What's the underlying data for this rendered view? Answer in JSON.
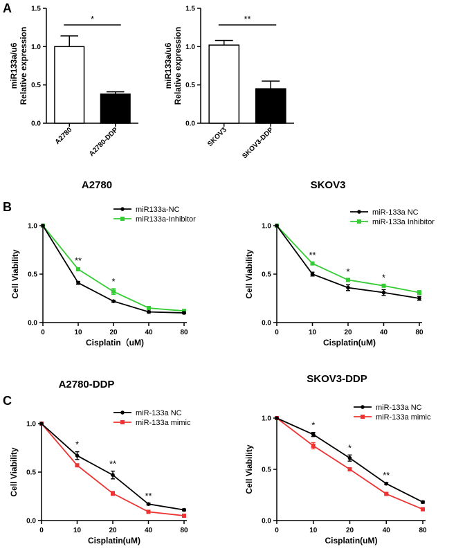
{
  "panel_labels": [
    "A",
    "B",
    "C"
  ],
  "chart_data": [
    {
      "id": "a1",
      "type": "bar",
      "panel": "A",
      "categories": [
        "A2780",
        "A2780-DDP"
      ],
      "values": [
        1.0,
        0.38
      ],
      "errors": [
        0.14,
        0.03
      ],
      "colors": [
        "#ffffff",
        "#000000"
      ],
      "ylabel": "miR133a/u6\nRelative expression",
      "ylim": [
        0,
        1.5
      ],
      "yticks": [
        "0.0",
        "0.5",
        "1.0",
        "1.5"
      ],
      "significance": [
        {
          "from": 0,
          "to": 1,
          "text": "*"
        }
      ]
    },
    {
      "id": "a2",
      "type": "bar",
      "panel": "A",
      "categories": [
        "SKOV3",
        "SKOV3-DDP"
      ],
      "values": [
        1.02,
        0.45
      ],
      "errors": [
        0.06,
        0.1
      ],
      "colors": [
        "#ffffff",
        "#000000"
      ],
      "ylabel": "miR133a/u6\nRelative expression",
      "ylim": [
        0,
        1.5
      ],
      "yticks": [
        "0.0",
        "0.5",
        "1.0",
        "1.5"
      ],
      "significance": [
        {
          "from": 0,
          "to": 1,
          "text": "**"
        }
      ]
    },
    {
      "id": "b1",
      "type": "line",
      "panel": "B",
      "title": "A2780",
      "xlabel": "Cisplatin（uM)",
      "ylabel": "Cell Viability",
      "categories": [
        "0",
        "10",
        "20",
        "40",
        "80"
      ],
      "ylim": [
        0,
        1.0
      ],
      "yticks": [
        "0.0",
        "0.5",
        "1.0"
      ],
      "legend_position": "top-right",
      "series": [
        {
          "name": "miR133a-NC",
          "color": "#000000",
          "marker": "circle",
          "values": [
            1.0,
            0.41,
            0.22,
            0.11,
            0.1
          ],
          "errors": [
            0,
            0.015,
            0.01,
            0.01,
            0.01
          ]
        },
        {
          "name": "miR133a-Inhibitor",
          "color": "#33cc33",
          "marker": "square",
          "values": [
            1.0,
            0.55,
            0.32,
            0.15,
            0.12
          ],
          "errors": [
            0,
            0.015,
            0.03,
            0.01,
            0.01
          ]
        }
      ],
      "annotations": [
        {
          "x": 1,
          "text": "**"
        },
        {
          "x": 2,
          "text": "*"
        }
      ]
    },
    {
      "id": "b2",
      "type": "line",
      "panel": "B",
      "title": "SKOV3",
      "xlabel": "Cisplatin(uM)",
      "ylabel": "Cell Viability",
      "categories": [
        "0",
        "10",
        "20",
        "40",
        "80"
      ],
      "ylim": [
        0,
        1.0
      ],
      "yticks": [
        "0.0",
        "0.5",
        "1.0"
      ],
      "legend_position": "top-right",
      "series": [
        {
          "name": "miR-133a NC",
          "color": "#000000",
          "marker": "circle",
          "values": [
            1.0,
            0.5,
            0.36,
            0.31,
            0.25
          ],
          "errors": [
            0,
            0.02,
            0.03,
            0.03,
            0.02
          ]
        },
        {
          "name": "miR-133a Inhibitor",
          "color": "#33cc33",
          "marker": "square",
          "values": [
            1.0,
            0.61,
            0.44,
            0.38,
            0.31
          ],
          "errors": [
            0,
            0.01,
            0.01,
            0.01,
            0.02
          ]
        }
      ],
      "annotations": [
        {
          "x": 1,
          "text": "**"
        },
        {
          "x": 2,
          "text": "*"
        },
        {
          "x": 3,
          "text": "*"
        }
      ]
    },
    {
      "id": "c1",
      "type": "line",
      "panel": "C",
      "title": "A2780-DDP",
      "xlabel": "Cisplatin(uM)",
      "ylabel": "Cell Viability",
      "categories": [
        "0",
        "10",
        "20",
        "40",
        "80"
      ],
      "ylim": [
        0,
        1.0
      ],
      "yticks": [
        "0.0",
        "0.5",
        "1.0"
      ],
      "legend_position": "top-right",
      "series": [
        {
          "name": "miR-133a NC",
          "color": "#000000",
          "marker": "circle",
          "values": [
            1.0,
            0.67,
            0.47,
            0.17,
            0.11
          ],
          "errors": [
            0,
            0.04,
            0.04,
            0.01,
            0.01
          ]
        },
        {
          "name": "miR-133a mimic",
          "color": "#ee3333",
          "marker": "square",
          "values": [
            1.0,
            0.57,
            0.28,
            0.09,
            0.05
          ],
          "errors": [
            0,
            0.015,
            0.02,
            0.01,
            0.01
          ]
        }
      ],
      "annotations": [
        {
          "x": 1,
          "text": "*"
        },
        {
          "x": 2,
          "text": "**"
        },
        {
          "x": 3,
          "text": "**"
        }
      ]
    },
    {
      "id": "c2",
      "type": "line",
      "panel": "C",
      "title": "SKOV3-DDP",
      "xlabel": "Cisplatin(uM)",
      "ylabel": "Cell Viability",
      "categories": [
        "0",
        "10",
        "20",
        "40",
        "80"
      ],
      "ylim": [
        0,
        1.0
      ],
      "yticks": [
        "0.0",
        "0.5",
        "1.0"
      ],
      "legend_position": "top-right",
      "series": [
        {
          "name": "miR-133a NC",
          "color": "#000000",
          "marker": "circle",
          "values": [
            1.0,
            0.84,
            0.61,
            0.36,
            0.18
          ],
          "errors": [
            0,
            0.02,
            0.03,
            0.01,
            0.01
          ]
        },
        {
          "name": "miR-133a mimic",
          "color": "#ee3333",
          "marker": "square",
          "values": [
            1.0,
            0.73,
            0.5,
            0.26,
            0.11
          ],
          "errors": [
            0,
            0.03,
            0.01,
            0.01,
            0.01
          ]
        }
      ],
      "annotations": [
        {
          "x": 1,
          "text": "*"
        },
        {
          "x": 2,
          "text": "*"
        },
        {
          "x": 3,
          "text": "**"
        }
      ]
    }
  ]
}
